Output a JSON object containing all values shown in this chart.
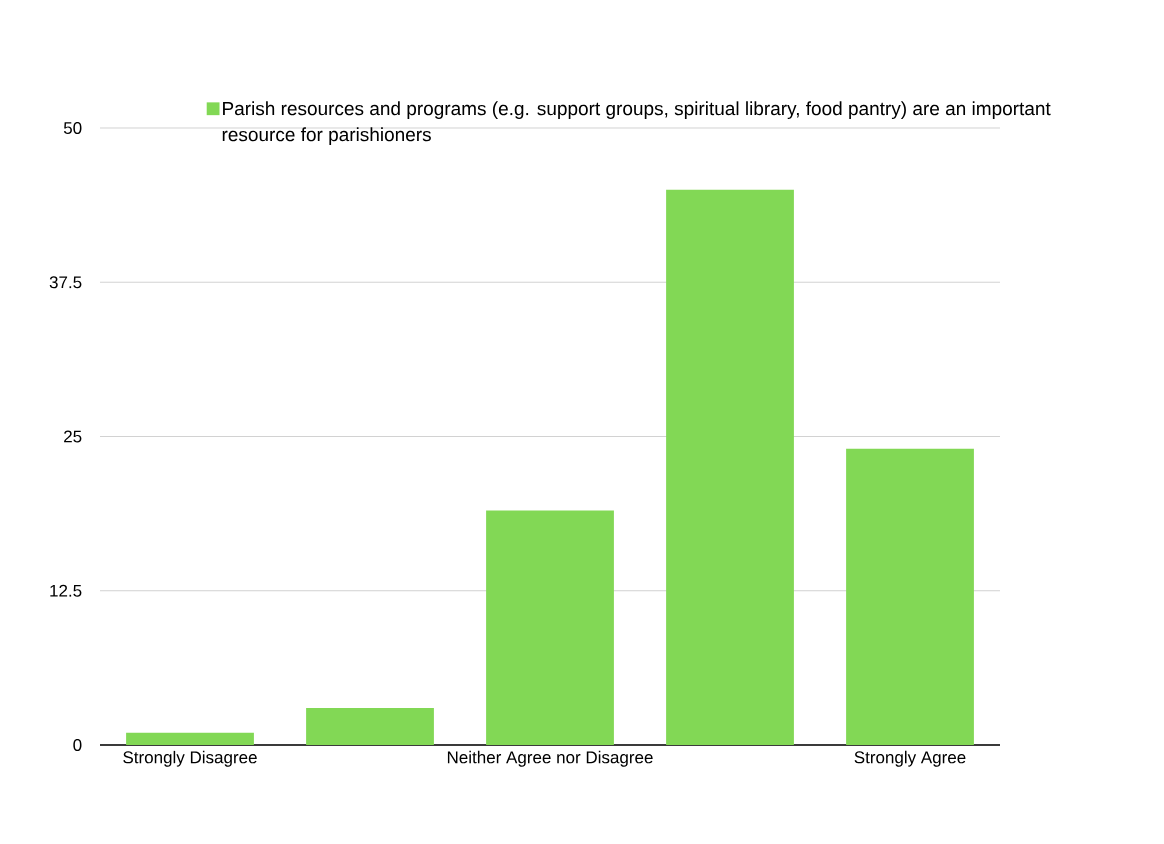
{
  "chart_data": {
    "type": "bar",
    "categories": [
      "Strongly Disagree",
      null,
      "Neither Agree nor Disagree",
      null,
      "Strongly Agree"
    ],
    "series": [
      {
        "name": "Parish resources and programs (e.g. support groups, spiritual library, food pantry) are an important resource for parishioners",
        "color": "#82d855",
        "values": [
          1,
          3,
          19,
          45,
          24
        ]
      }
    ],
    "ylim": [
      0,
      50
    ],
    "yticks": [
      0,
      12.5,
      25,
      37.5,
      50
    ],
    "grid": "y",
    "legend": "top"
  }
}
